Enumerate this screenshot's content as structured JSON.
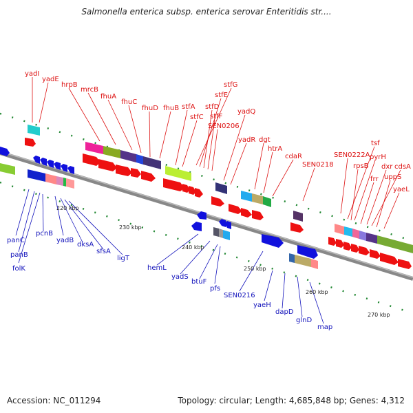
{
  "header": {
    "title": "Salmonella enterica subsp. enterica serovar Enteritidis str....",
    "accession": "Accession: NC_011294",
    "topology": "Topology: circular; Length: 4,685,848 bp; Genes: 4,312"
  },
  "ticks": [
    "220 kbp",
    "230 kbp",
    "240 kbp",
    "250 kbp",
    "260 kbp",
    "270 kbp"
  ],
  "genes_forward": [
    "yadI",
    "yadE",
    "hrpB",
    "mrcB",
    "fhuA",
    "fhuC",
    "fhuD",
    "fhuB",
    "stfA",
    "stfC",
    "stfG",
    "stfE",
    "stfD",
    "stfF",
    "SEN0206",
    "yadQ",
    "yadR",
    "dgt",
    "htrA",
    "cdaR",
    "SEN0218",
    "SEN0222A",
    "tsf",
    "rpsB",
    "pyrH",
    "frr",
    "dxr",
    "cdsA",
    "uppS",
    "yaeL"
  ],
  "genes_reverse": [
    "panC",
    "panB",
    "folK",
    "pcnB",
    "yadB",
    "dksA",
    "sfsA",
    "ligT",
    "hemL",
    "yadS",
    "btuF",
    "pfs",
    "SEN0216",
    "yaeH",
    "dapD",
    "glnD",
    "map"
  ],
  "colors": {
    "forward": "#dd1111",
    "reverse": "#1111bb",
    "backbone": "#888888"
  }
}
